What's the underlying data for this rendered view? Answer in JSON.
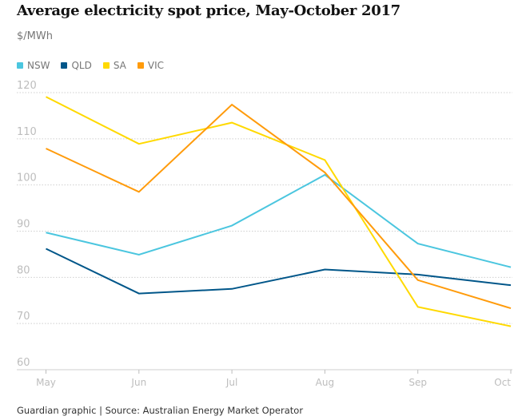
{
  "chart_data": {
    "type": "line",
    "title": "Average electricity spot price, May-October 2017",
    "ylabel": "$/MWh",
    "xlabel": "",
    "categories": [
      "May",
      "Jun",
      "Jul",
      "Aug",
      "Sep",
      "Oct"
    ],
    "ylim": [
      60,
      120
    ],
    "yticks": [
      60,
      70,
      80,
      90,
      100,
      110,
      120
    ],
    "grid": true,
    "legend": "top-left",
    "series": [
      {
        "name": "NSW",
        "color": "#4bc6df",
        "values": [
          89.7,
          84.9,
          91.2,
          102.2,
          87.3,
          82.2
        ]
      },
      {
        "name": "QLD",
        "color": "#005689",
        "values": [
          86.2,
          76.5,
          77.5,
          81.7,
          80.6,
          78.3
        ]
      },
      {
        "name": "SA",
        "color": "#ffd900",
        "values": [
          119.1,
          108.9,
          113.5,
          105.4,
          73.6,
          69.4
        ]
      },
      {
        "name": "VIC",
        "color": "#ff9b0b",
        "values": [
          107.9,
          98.5,
          117.4,
          102.7,
          79.4,
          73.3
        ]
      }
    ]
  },
  "footer": {
    "source": "Guardian graphic | Source: Australian Energy Market Operator"
  }
}
